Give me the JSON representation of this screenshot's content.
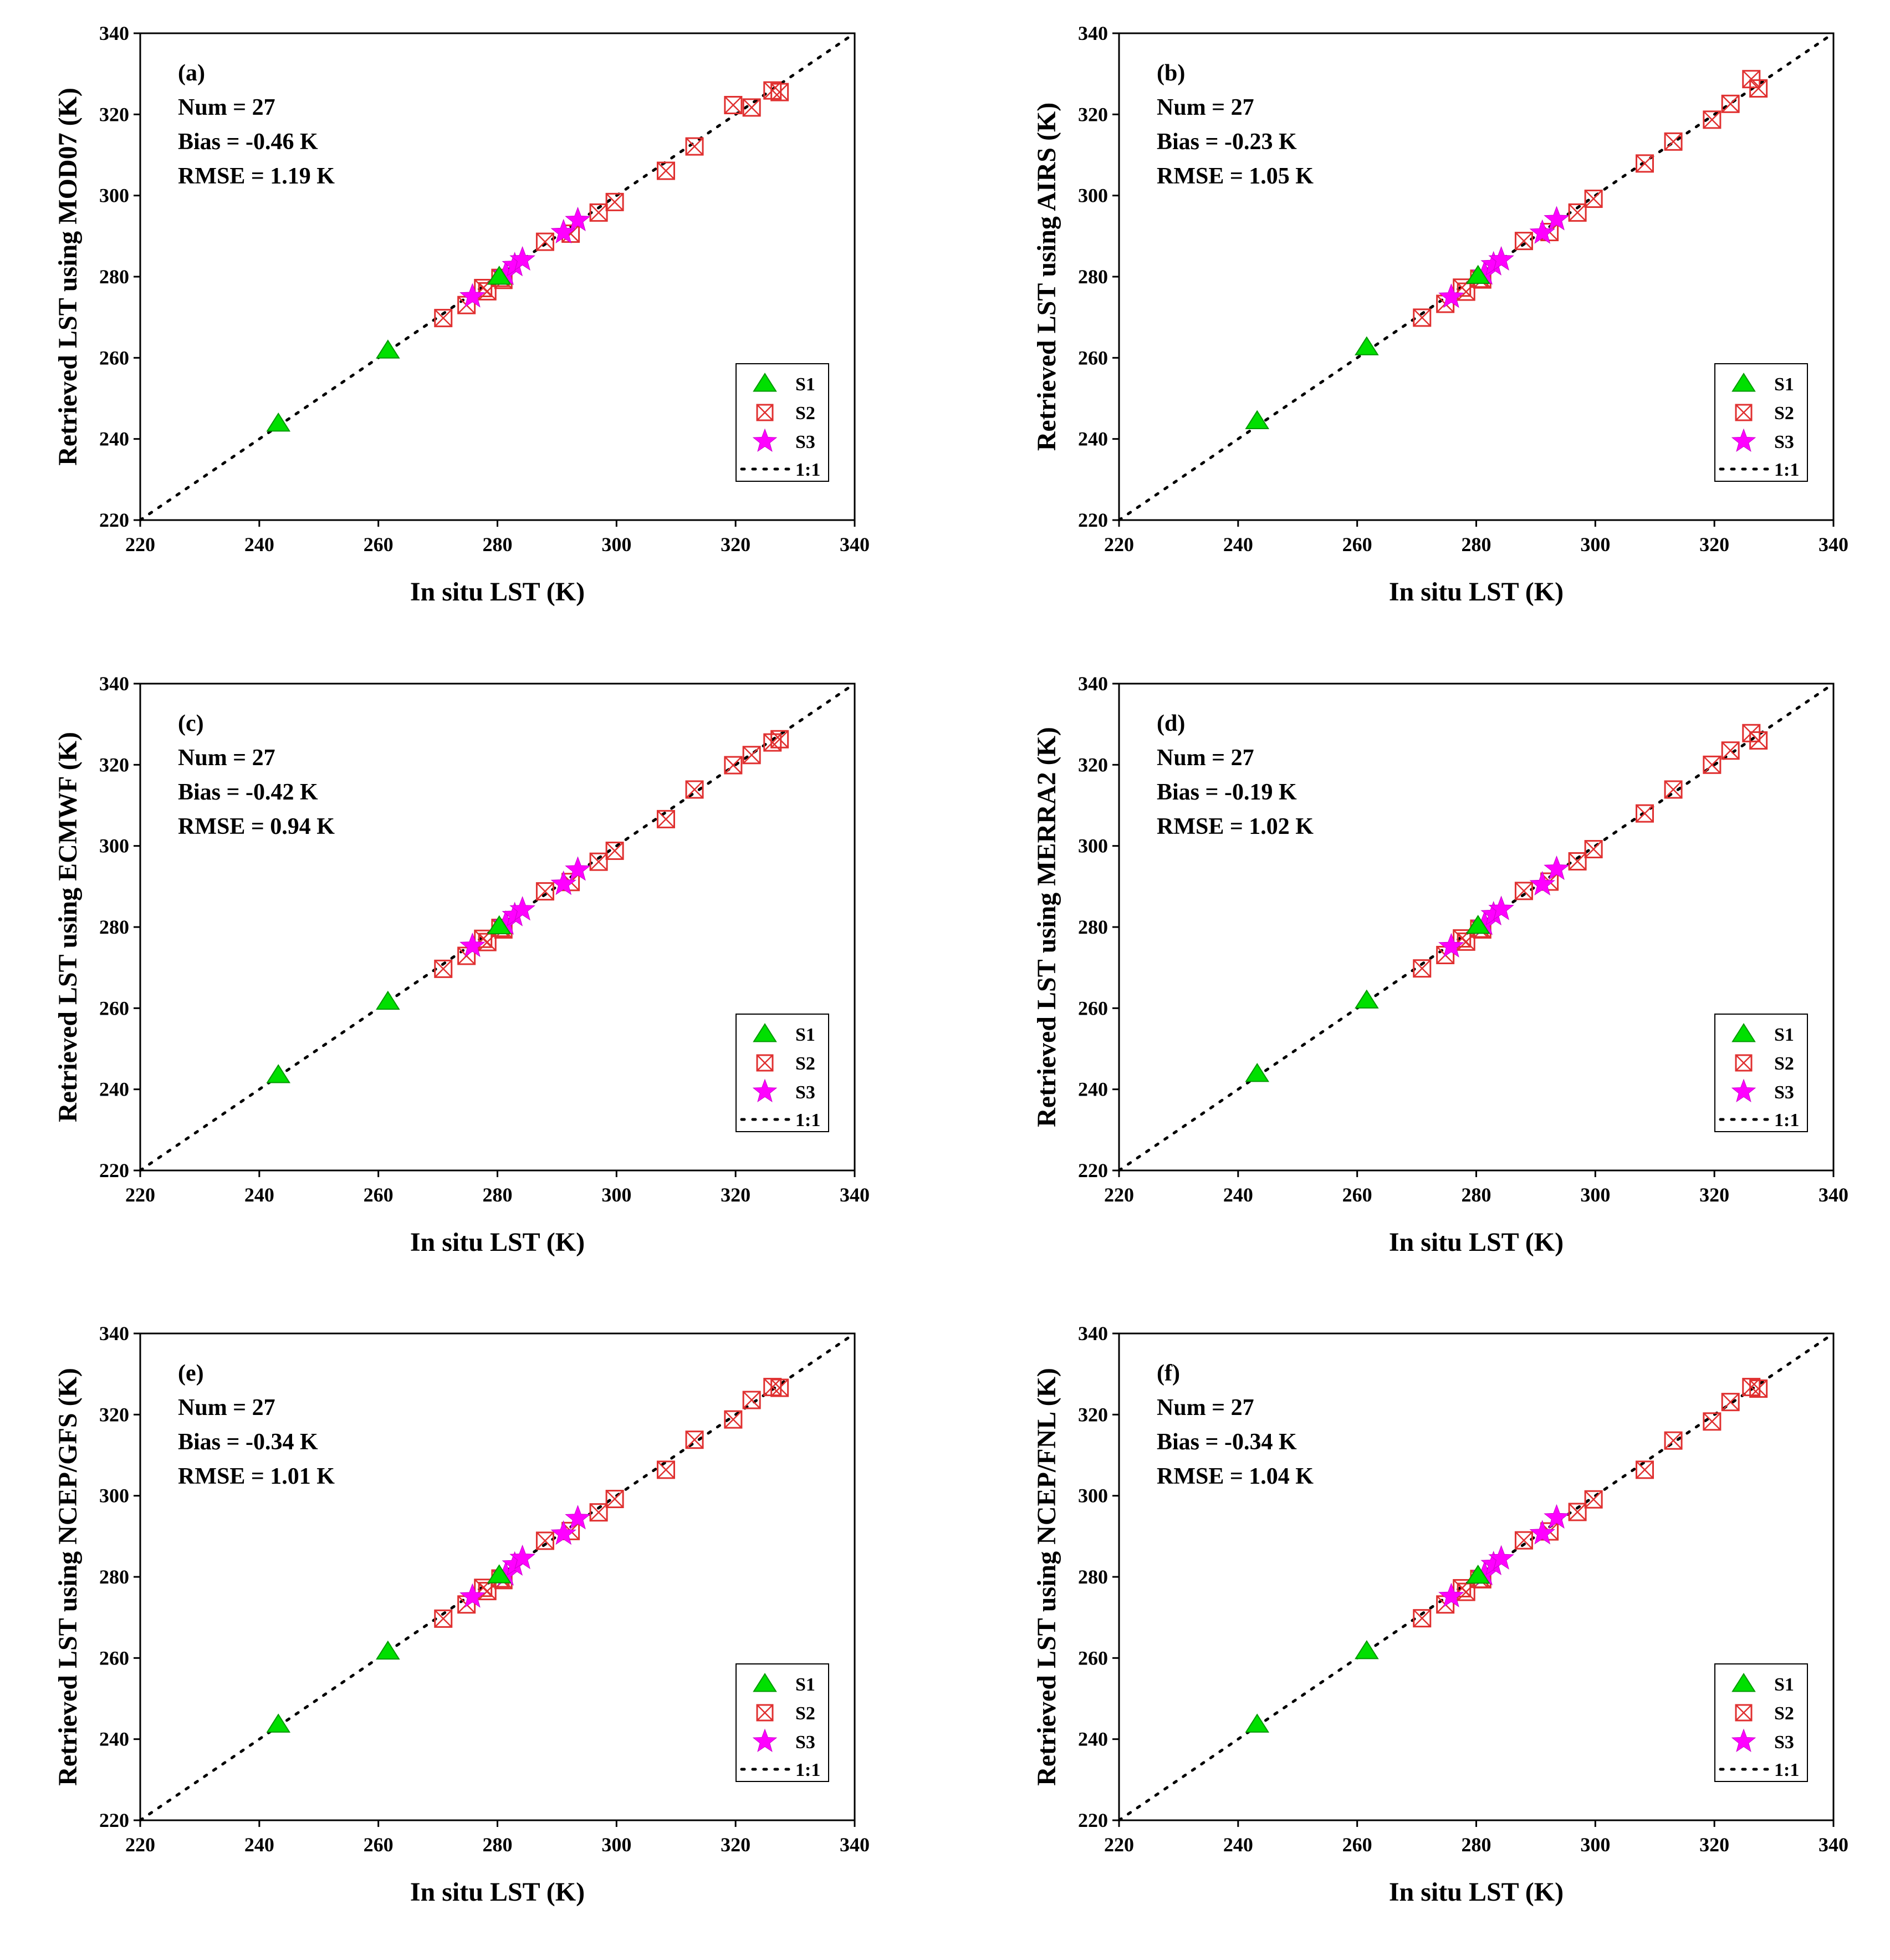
{
  "legend": {
    "s1_label": "S1",
    "s2_label": "S2",
    "s3_label": "S3",
    "line_label": "1:1"
  },
  "colors": {
    "s1": "#00e000",
    "s2": "#e03030",
    "s3": "#ff00ff",
    "axes": "#000000"
  },
  "chart_data": [
    {
      "type": "scatter",
      "panel": "(a)",
      "title": "",
      "xlabel": "In situ LST (K)",
      "ylabel": "Retrieved LST using MOD07 (K)",
      "xlim": [
        220,
        340
      ],
      "ylim": [
        220,
        340
      ],
      "xticks": [
        220,
        240,
        260,
        280,
        300,
        320,
        340
      ],
      "yticks": [
        220,
        240,
        260,
        280,
        300,
        320,
        340
      ],
      "stats": {
        "num": "Num = 27",
        "bias": "Bias = -0.46 K",
        "rmse": "RMSE = 1.19 K"
      },
      "series": [
        {
          "name": "S1",
          "x": [
            243.2,
            261.6,
            280.3
          ],
          "y": [
            243.8,
            261.8,
            280.0
          ]
        },
        {
          "name": "S2",
          "x": [
            270.9,
            274.8,
            277.6,
            278.3,
            280.5,
            281.0,
            288.0,
            292.3,
            297.0,
            299.7,
            308.3,
            313.1,
            319.6,
            322.7,
            326.2,
            327.4
          ],
          "y": [
            269.8,
            273.0,
            277.2,
            276.4,
            279.7,
            279.2,
            288.6,
            290.6,
            295.8,
            298.4,
            306.1,
            312.1,
            322.3,
            321.7,
            325.9,
            325.5
          ]
        },
        {
          "name": "S3",
          "x": [
            275.8,
            281.4,
            282.9,
            284.2,
            291.1,
            293.5
          ],
          "y": [
            275.1,
            280.6,
            282.8,
            284.2,
            290.9,
            293.9
          ]
        }
      ]
    },
    {
      "type": "scatter",
      "panel": "(b)",
      "title": "",
      "xlabel": "In situ LST (K)",
      "ylabel": "Retrieved LST using AIRS (K)",
      "xlim": [
        220,
        340
      ],
      "ylim": [
        220,
        340
      ],
      "xticks": [
        220,
        240,
        260,
        280,
        300,
        320,
        340
      ],
      "yticks": [
        220,
        240,
        260,
        280,
        300,
        320,
        340
      ],
      "stats": {
        "num": "Num = 27",
        "bias": "Bias = -0.23 K",
        "rmse": "RMSE = 1.05 K"
      },
      "series": [
        {
          "name": "S1",
          "x": [
            243.2,
            261.6,
            280.3
          ],
          "y": [
            244.4,
            262.6,
            280.2
          ]
        },
        {
          "name": "S2",
          "x": [
            270.9,
            274.8,
            277.6,
            278.3,
            280.5,
            281.0,
            288.0,
            292.3,
            297.0,
            299.7,
            308.3,
            313.1,
            319.6,
            322.7,
            326.2,
            327.4
          ],
          "y": [
            269.9,
            273.3,
            277.3,
            276.3,
            279.5,
            279.3,
            288.8,
            291.0,
            295.8,
            299.2,
            307.9,
            313.3,
            318.7,
            322.6,
            328.7,
            326.4
          ]
        },
        {
          "name": "S3",
          "x": [
            275.8,
            281.4,
            282.9,
            284.2,
            291.1,
            293.5
          ],
          "y": [
            275.0,
            280.7,
            283.0,
            284.2,
            290.8,
            294.1
          ]
        }
      ]
    },
    {
      "type": "scatter",
      "panel": "(c)",
      "title": "",
      "xlabel": "In situ LST (K)",
      "ylabel": "Retrieved LST using ECMWF (K)",
      "xlim": [
        220,
        340
      ],
      "ylim": [
        220,
        340
      ],
      "xticks": [
        220,
        240,
        260,
        280,
        300,
        320,
        340
      ],
      "yticks": [
        220,
        240,
        260,
        280,
        300,
        320,
        340
      ],
      "stats": {
        "num": "Num = 27",
        "bias": "Bias = -0.42 K",
        "rmse": "RMSE = 0.94 K"
      },
      "series": [
        {
          "name": "S1",
          "x": [
            243.2,
            261.6,
            280.3
          ],
          "y": [
            243.5,
            261.6,
            280.2
          ]
        },
        {
          "name": "S2",
          "x": [
            270.9,
            274.8,
            277.6,
            278.3,
            280.5,
            281.0,
            288.0,
            292.3,
            297.0,
            299.7,
            308.3,
            313.1,
            319.6,
            322.7,
            326.2,
            327.4
          ],
          "y": [
            269.7,
            272.9,
            277.1,
            276.3,
            279.8,
            279.4,
            288.8,
            291.1,
            296.1,
            298.8,
            306.6,
            313.9,
            319.9,
            322.4,
            325.5,
            326.3
          ]
        },
        {
          "name": "S3",
          "x": [
            275.8,
            281.4,
            282.9,
            284.2,
            291.1,
            293.5
          ],
          "y": [
            275.3,
            280.8,
            282.9,
            284.3,
            290.6,
            294.1
          ]
        }
      ]
    },
    {
      "type": "scatter",
      "panel": "(d)",
      "title": "",
      "xlabel": "In situ LST (K)",
      "ylabel": "Retrieved LST using MERRA2 (K)",
      "xlim": [
        220,
        340
      ],
      "ylim": [
        220,
        340
      ],
      "xticks": [
        220,
        240,
        260,
        280,
        300,
        320,
        340
      ],
      "yticks": [
        220,
        240,
        260,
        280,
        300,
        320,
        340
      ],
      "stats": {
        "num": "Num = 27",
        "bias": "Bias = -0.19 K",
        "rmse": "RMSE = 1.02 K"
      },
      "series": [
        {
          "name": "S1",
          "x": [
            243.2,
            261.6,
            280.3
          ],
          "y": [
            243.8,
            261.9,
            280.3
          ]
        },
        {
          "name": "S2",
          "x": [
            270.9,
            274.8,
            277.6,
            278.3,
            280.5,
            281.0,
            288.0,
            292.3,
            297.0,
            299.7,
            308.3,
            313.1,
            319.6,
            322.7,
            326.2,
            327.4
          ],
          "y": [
            269.8,
            273.1,
            277.2,
            276.4,
            279.6,
            279.4,
            288.9,
            291.2,
            296.2,
            299.2,
            308.0,
            313.9,
            320.0,
            323.5,
            327.8,
            326.0
          ]
        },
        {
          "name": "S3",
          "x": [
            275.8,
            281.4,
            282.9,
            284.2,
            291.1,
            293.5
          ],
          "y": [
            275.2,
            280.7,
            283.1,
            284.4,
            290.5,
            294.3
          ]
        }
      ]
    },
    {
      "type": "scatter",
      "panel": "(e)",
      "title": "",
      "xlabel": "In situ LST (K)",
      "ylabel": "Retrieved LST using NCEP/GFS (K)",
      "xlim": [
        220,
        340
      ],
      "ylim": [
        220,
        340
      ],
      "xticks": [
        220,
        240,
        260,
        280,
        300,
        320,
        340
      ],
      "yticks": [
        220,
        240,
        260,
        280,
        300,
        320,
        340
      ],
      "stats": {
        "num": "Num = 27",
        "bias": "Bias = -0.34 K",
        "rmse": "RMSE = 1.01 K"
      },
      "series": [
        {
          "name": "S1",
          "x": [
            243.2,
            261.6,
            280.3
          ],
          "y": [
            243.6,
            261.6,
            280.4
          ]
        },
        {
          "name": "S2",
          "x": [
            270.9,
            274.8,
            277.6,
            278.3,
            280.5,
            281.0,
            288.0,
            292.3,
            297.0,
            299.7,
            308.3,
            313.1,
            319.6,
            322.7,
            326.2,
            327.4
          ],
          "y": [
            269.7,
            273.2,
            277.3,
            276.5,
            279.6,
            279.2,
            288.9,
            291.3,
            295.9,
            299.2,
            306.4,
            313.8,
            318.8,
            323.6,
            326.8,
            326.6
          ]
        },
        {
          "name": "S3",
          "x": [
            275.8,
            281.4,
            282.9,
            284.2,
            291.1,
            293.5
          ],
          "y": [
            275.1,
            280.5,
            283.0,
            284.6,
            290.6,
            294.4
          ]
        }
      ]
    },
    {
      "type": "scatter",
      "panel": "(f)",
      "title": "",
      "xlabel": "In situ LST (K)",
      "ylabel": "Retrieved LST using NCEP/FNL (K)",
      "xlim": [
        220,
        340
      ],
      "ylim": [
        220,
        340
      ],
      "xticks": [
        220,
        240,
        260,
        280,
        300,
        320,
        340
      ],
      "yticks": [
        220,
        240,
        260,
        280,
        300,
        320,
        340
      ],
      "stats": {
        "num": "Num = 27",
        "bias": "Bias = -0.34 K",
        "rmse": "RMSE = 1.04 K"
      },
      "series": [
        {
          "name": "S1",
          "x": [
            243.2,
            261.6,
            280.3
          ],
          "y": [
            243.6,
            261.7,
            280.3
          ]
        },
        {
          "name": "S2",
          "x": [
            270.9,
            274.8,
            277.6,
            278.3,
            280.5,
            281.0,
            288.0,
            292.3,
            297.0,
            299.7,
            308.3,
            313.1,
            319.6,
            322.7,
            326.2,
            327.4
          ],
          "y": [
            269.8,
            273.2,
            277.2,
            276.3,
            279.5,
            279.4,
            289.0,
            291.2,
            296.0,
            299.1,
            306.4,
            313.6,
            318.3,
            323.1,
            326.8,
            326.4
          ]
        },
        {
          "name": "S3",
          "x": [
            275.8,
            281.4,
            282.9,
            284.2,
            291.1,
            293.5
          ],
          "y": [
            275.2,
            280.6,
            283.1,
            284.5,
            290.7,
            294.6
          ]
        }
      ]
    }
  ]
}
